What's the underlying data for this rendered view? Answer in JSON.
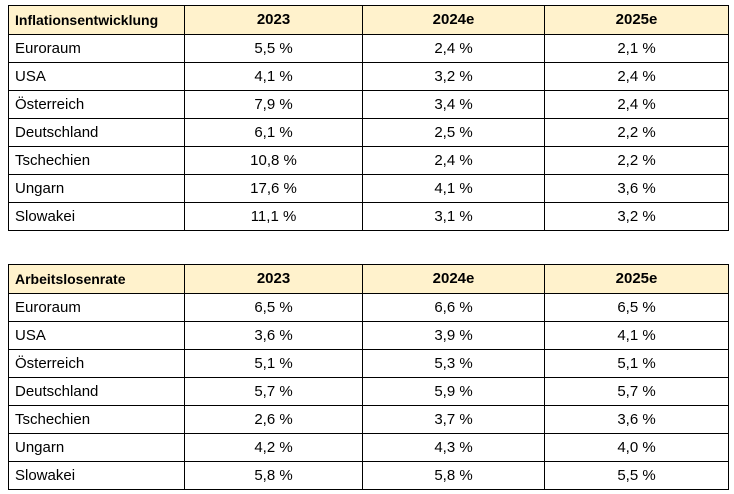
{
  "tables": [
    {
      "title": "Inflationsentwicklung",
      "columns": [
        "2023",
        "2024e",
        "2025e"
      ],
      "rows": [
        {
          "country": "Euroraum",
          "values": [
            "5,5 %",
            "2,4 %",
            "2,1 %"
          ]
        },
        {
          "country": "USA",
          "values": [
            "4,1 %",
            "3,2 %",
            "2,4 %"
          ]
        },
        {
          "country": "Österreich",
          "values": [
            "7,9 %",
            "3,4 %",
            "2,4 %"
          ]
        },
        {
          "country": "Deutschland",
          "values": [
            "6,1 %",
            "2,5 %",
            "2,2 %"
          ]
        },
        {
          "country": "Tschechien",
          "values": [
            "10,8 %",
            "2,4 %",
            "2,2 %"
          ]
        },
        {
          "country": "Ungarn",
          "values": [
            "17,6 %",
            "4,1 %",
            "3,6 %"
          ]
        },
        {
          "country": "Slowakei",
          "values": [
            "11,1 %",
            "3,1 %",
            "3,2 %"
          ]
        }
      ]
    },
    {
      "title": "Arbeitslosenrate",
      "columns": [
        "2023",
        "2024e",
        "2025e"
      ],
      "rows": [
        {
          "country": "Euroraum",
          "values": [
            "6,5 %",
            "6,6 %",
            "6,5 %"
          ]
        },
        {
          "country": "USA",
          "values": [
            "3,6 %",
            "3,9 %",
            "4,1 %"
          ]
        },
        {
          "country": "Österreich",
          "values": [
            "5,1 %",
            "5,3 %",
            "5,1 %"
          ]
        },
        {
          "country": "Deutschland",
          "values": [
            "5,7 %",
            "5,9 %",
            "5,7 %"
          ]
        },
        {
          "country": "Tschechien",
          "values": [
            "2,6 %",
            "3,7 %",
            "3,6 %"
          ]
        },
        {
          "country": "Ungarn",
          "values": [
            "4,2 %",
            "4,3 %",
            "4,0 %"
          ]
        },
        {
          "country": "Slowakei",
          "values": [
            "5,8 %",
            "5,8 %",
            "5,5 %"
          ]
        }
      ]
    }
  ],
  "colors": {
    "header_background": "#fff2cc",
    "border": "#000000"
  }
}
